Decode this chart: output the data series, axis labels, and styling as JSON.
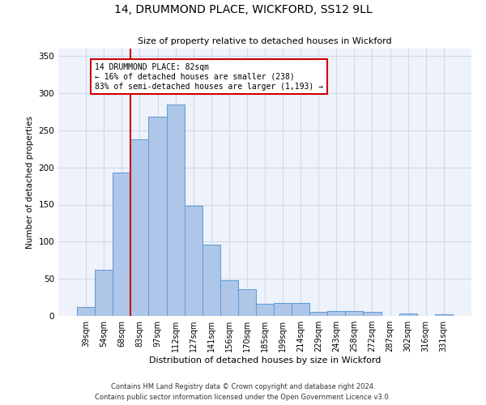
{
  "title_line1": "14, DRUMMOND PLACE, WICKFORD, SS12 9LL",
  "title_line2": "Size of property relative to detached houses in Wickford",
  "xlabel": "Distribution of detached houses by size in Wickford",
  "ylabel": "Number of detached properties",
  "categories": [
    "39sqm",
    "54sqm",
    "68sqm",
    "83sqm",
    "97sqm",
    "112sqm",
    "127sqm",
    "141sqm",
    "156sqm",
    "170sqm",
    "185sqm",
    "199sqm",
    "214sqm",
    "229sqm",
    "243sqm",
    "258sqm",
    "272sqm",
    "287sqm",
    "302sqm",
    "316sqm",
    "331sqm"
  ],
  "values": [
    12,
    62,
    193,
    238,
    268,
    285,
    148,
    96,
    48,
    36,
    16,
    18,
    18,
    5,
    7,
    7,
    6,
    0,
    3,
    0,
    2
  ],
  "bar_color": "#aec6e8",
  "bar_edge_color": "#5b9bd5",
  "grid_color": "#d0d8e8",
  "bg_color": "#eef2fb",
  "vline_color": "#cc0000",
  "vline_x_index": 2.5,
  "annotation_text": "14 DRUMMOND PLACE: 82sqm\n← 16% of detached houses are smaller (238)\n83% of semi-detached houses are larger (1,193) →",
  "annotation_box_color": "#cc0000",
  "ylim": [
    0,
    360
  ],
  "yticks": [
    0,
    50,
    100,
    150,
    200,
    250,
    300,
    350
  ],
  "footer_line1": "Contains HM Land Registry data © Crown copyright and database right 2024.",
  "footer_line2": "Contains public sector information licensed under the Open Government Licence v3.0."
}
